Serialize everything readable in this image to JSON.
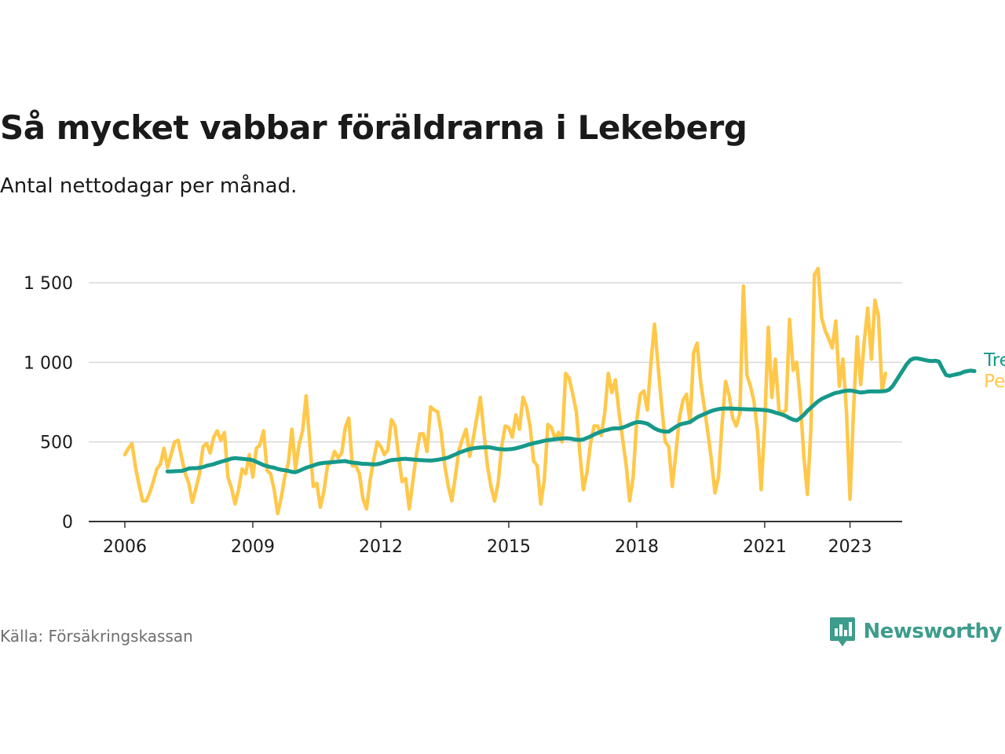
{
  "title": "Så mycket vabbar föräldrarna i Lekeberg",
  "subtitle": "Antal nettodagar per månad.",
  "source": "Källa: Försäkringskassan",
  "brand": "Newsworthy",
  "colors": {
    "monthly": "#ffc84a",
    "trend": "#16998a",
    "grid": "#d9d9d9",
    "axis": "#333333",
    "brand": "#3d9c8c"
  },
  "chart_data": {
    "type": "line",
    "title": "Så mycket vabbar föräldrarna i Lekeberg",
    "subtitle": "Antal nettodagar per månad.",
    "x_label": "",
    "y_label": "",
    "x_ticks": [
      "2006",
      "2009",
      "2012",
      "2015",
      "2018",
      "2021",
      "2023"
    ],
    "x_range": [
      "2006-01",
      "2023-12"
    ],
    "y_ticks": [
      "0",
      "500",
      "1 000",
      "1 500"
    ],
    "ylim": [
      0,
      1500
    ],
    "grid": "horizontal",
    "legend": "inline labels at line ends (right)",
    "series": [
      {
        "name": "Per månad",
        "start": "2006-01",
        "frequency": "monthly",
        "values": [
          420,
          460,
          490,
          340,
          230,
          130,
          130,
          180,
          250,
          330,
          360,
          460,
          340,
          420,
          500,
          510,
          400,
          300,
          240,
          120,
          210,
          300,
          470,
          490,
          430,
          530,
          570,
          510,
          560,
          280,
          210,
          110,
          200,
          330,
          300,
          420,
          280,
          460,
          480,
          570,
          320,
          300,
          200,
          50,
          150,
          280,
          370,
          580,
          330,
          480,
          570,
          790,
          500,
          220,
          240,
          90,
          190,
          350,
          370,
          440,
          400,
          430,
          590,
          650,
          350,
          350,
          300,
          140,
          80,
          260,
          390,
          500,
          470,
          420,
          450,
          640,
          600,
          410,
          250,
          270,
          80,
          250,
          420,
          550,
          550,
          440,
          720,
          700,
          690,
          560,
          350,
          220,
          130,
          290,
          450,
          520,
          580,
          410,
          520,
          650,
          780,
          560,
          350,
          220,
          130,
          240,
          470,
          600,
          590,
          530,
          670,
          580,
          780,
          720,
          600,
          380,
          350,
          110,
          260,
          610,
          590,
          520,
          560,
          500,
          930,
          900,
          800,
          690,
          430,
          200,
          310,
          490,
          600,
          600,
          540,
          680,
          930,
          810,
          890,
          690,
          520,
          360,
          130,
          280,
          640,
          800,
          820,
          700,
          1000,
          1240,
          980,
          730,
          500,
          470,
          220,
          430,
          650,
          760,
          800,
          620,
          1060,
          1120,
          870,
          720,
          560,
          390,
          180,
          280,
          610,
          880,
          790,
          650,
          600,
          680,
          1480,
          920,
          850,
          750,
          560,
          200,
          600,
          1220,
          780,
          1020,
          700,
          680,
          700,
          1270,
          950,
          1000,
          760,
          410,
          170,
          580,
          1550,
          1590,
          1280,
          1200,
          1150,
          1090,
          1260,
          850,
          1020,
          690,
          140,
          700,
          1160,
          860,
          1130,
          1340,
          1020,
          1390,
          1290,
          820,
          930
        ]
      },
      {
        "name": "Trend",
        "start": "2007-01",
        "frequency": "monthly",
        "values": [
          315,
          315,
          316,
          317,
          318,
          325,
          333,
          335,
          335,
          338,
          342,
          350,
          355,
          360,
          368,
          375,
          382,
          388,
          395,
          398,
          396,
          394,
          392,
          390,
          385,
          375,
          365,
          355,
          348,
          342,
          338,
          330,
          325,
          322,
          318,
          312,
          310,
          318,
          328,
          338,
          345,
          352,
          360,
          365,
          368,
          370,
          372,
          374,
          376,
          378,
          380,
          374,
          370,
          368,
          365,
          362,
          362,
          360,
          358,
          360,
          365,
          372,
          380,
          386,
          388,
          390,
          393,
          394,
          392,
          390,
          388,
          386,
          385,
          384,
          383,
          385,
          388,
          392,
          396,
          402,
          412,
          422,
          432,
          440,
          448,
          455,
          460,
          463,
          465,
          466,
          467,
          465,
          460,
          456,
          454,
          453,
          454,
          456,
          460,
          466,
          472,
          479,
          486,
          492,
          497,
          502,
          507,
          511,
          514,
          517,
          519,
          521,
          523,
          522,
          518,
          514,
          512,
          516,
          525,
          535,
          546,
          556,
          565,
          572,
          578,
          583,
          585,
          585,
          590,
          598,
          608,
          617,
          624,
          624,
          620,
          615,
          600,
          585,
          575,
          568,
          565,
          565,
          580,
          595,
          608,
          615,
          619,
          625,
          640,
          655,
          665,
          675,
          685,
          694,
          701,
          706,
          709,
          710,
          710,
          709,
          708,
          707,
          706,
          705,
          704,
          704,
          703,
          702,
          700,
          697,
          692,
          685,
          678,
          671,
          662,
          650,
          640,
          635,
          650,
          670,
          695,
          715,
          735,
          755,
          770,
          780,
          790,
          800,
          808,
          812,
          818,
          822,
          823,
          820,
          815,
          810,
          812,
          816,
          818,
          817,
          817,
          818,
          820,
          828,
          850,
          885,
          920,
          955,
          990,
          1015,
          1025,
          1025,
          1020,
          1015,
          1010,
          1008,
          1010,
          1005,
          960,
          920,
          915,
          920,
          925,
          930,
          940,
          945,
          948,
          945
        ]
      }
    ]
  }
}
